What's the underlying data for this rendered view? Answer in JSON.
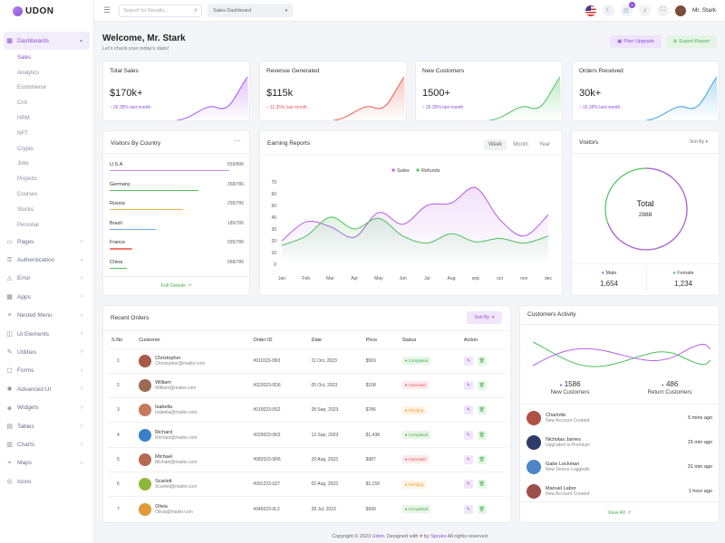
{
  "brand": {
    "name": "UDON"
  },
  "sidebar": {
    "items": [
      {
        "label": "Dashboards",
        "icon": "grid-icon",
        "active": true
      },
      {
        "label": "Pages",
        "icon": "file-icon"
      },
      {
        "label": "Authentication",
        "icon": "key-icon"
      },
      {
        "label": "Error",
        "icon": "warning-icon"
      },
      {
        "label": "Apps",
        "icon": "apps-icon"
      },
      {
        "label": "Nested Menu",
        "icon": "menu-icon"
      },
      {
        "label": "Ui Elements",
        "icon": "layers-icon"
      },
      {
        "label": "Utilities",
        "icon": "tool-icon"
      },
      {
        "label": "Forms",
        "icon": "form-icon"
      },
      {
        "label": "Advanced UI",
        "icon": "advanced-icon"
      },
      {
        "label": "Widgets",
        "icon": "widget-icon"
      },
      {
        "label": "Tables",
        "icon": "table-icon"
      },
      {
        "label": "Charts",
        "icon": "chart-icon"
      },
      {
        "label": "Maps",
        "icon": "map-icon"
      },
      {
        "label": "Icons",
        "icon": "icons-icon"
      }
    ],
    "dashboard_subitems": [
      "Sales",
      "Analytics",
      "Ecommerce",
      "Crm",
      "HRM",
      "NFT",
      "Crypto",
      "Jobs",
      "Projects",
      "Courses",
      "Stocks",
      "Personal"
    ]
  },
  "header": {
    "search_placeholder": "Search for Results...",
    "dashboard_select": "Sales Dashboard",
    "notification_count": "5",
    "user_name": "Mr. Stark"
  },
  "page": {
    "welcome": "Welcome, Mr. Stark",
    "subtitle": "Let's check your today's stats!",
    "plan_upgrade": "Plan Upgrade",
    "export_report": "Export Report"
  },
  "stats": [
    {
      "title": "Total Sales",
      "value": "$170k+",
      "change": "26.35% last month",
      "direction": "up",
      "color": "#a855f7"
    },
    {
      "title": "Revenue Generated",
      "value": "$115k",
      "change": "11.35% last month",
      "direction": "down",
      "color": "#ef5a4a"
    },
    {
      "title": "New Customers",
      "value": "1500+",
      "change": "26.35% last month",
      "direction": "up",
      "color": "#4cc25b"
    },
    {
      "title": "Orders Received",
      "value": "30k+",
      "change": "16.35% last month",
      "direction": "up",
      "color": "#3aa0e0"
    }
  ],
  "visitors_by_country": {
    "title": "Visitors By Country",
    "rows": [
      {
        "name": "U.S.A",
        "value": "559/896",
        "fraction": 0.62,
        "color": "#c58be8"
      },
      {
        "name": "Germany",
        "value": "358/786",
        "fraction": 0.46,
        "color": "#4cc25b"
      },
      {
        "name": "Russia",
        "value": "295/786",
        "fraction": 0.38,
        "color": "#f0b453"
      },
      {
        "name": "Brazil",
        "value": "185/786",
        "fraction": 0.24,
        "color": "#6fa8e8"
      },
      {
        "name": "France",
        "value": "095/786",
        "fraction": 0.12,
        "color": "#ef7a6a"
      },
      {
        "name": "China",
        "value": "068/786",
        "fraction": 0.09,
        "color": "#4cc25b"
      }
    ],
    "full_details": "Full Details"
  },
  "earning_reports": {
    "title": "Earning Reports",
    "tabs": [
      "Week",
      "Month",
      "Year"
    ],
    "active_tab": "Week"
  },
  "chart_data": {
    "type": "line",
    "x": [
      "Jan",
      "Feb",
      "Mar",
      "Apr",
      "May",
      "Jun",
      "Jul",
      "Aug",
      "sep",
      "oct",
      "nov",
      "dec"
    ],
    "series": [
      {
        "name": "Sales",
        "color": "#b55be6",
        "values": [
          20,
          36,
          32,
          23,
          44,
          34,
          50,
          52,
          65,
          38,
          24,
          42
        ]
      },
      {
        "name": "Refunds",
        "color": "#4cc25b",
        "values": [
          16,
          24,
          40,
          30,
          39,
          24,
          18,
          26,
          19,
          22,
          18,
          24
        ]
      }
    ],
    "yticks": [
      0,
      10,
      20,
      30,
      40,
      50,
      60,
      70
    ],
    "ylim": [
      0,
      70
    ],
    "legend": "top-center"
  },
  "visitors": {
    "title": "Visitors",
    "sort_label": "Sort By",
    "total_label": "Total",
    "total_value": "2888",
    "male_label": "Male",
    "male_value": "1,654",
    "female_label": "Female",
    "female_value": "1,234"
  },
  "recent_orders": {
    "title": "Recent Orders",
    "sort_label": "Sort By",
    "columns": [
      "S.No",
      "Customer",
      "Order ID",
      "Date",
      "Price",
      "Status",
      "Action"
    ],
    "rows": [
      {
        "sno": "1",
        "name": "Christopher",
        "email": "Christopher@mailer.com",
        "order_id": "#011023-0N3",
        "date": "11 Oct, 2023",
        "price": "$569",
        "status": "Completed",
        "avatar_color": "#a85a4a"
      },
      {
        "sno": "2",
        "name": "William",
        "email": "William@mailer.com",
        "order_id": "#023023-0D6",
        "date": "05 Oct, 2023",
        "price": "$108",
        "status": "Canceled",
        "avatar_color": "#9a6a55"
      },
      {
        "sno": "3",
        "name": "Isabella",
        "email": "Isabella@mailer.com",
        "order_id": "#019023-0S2",
        "date": "28 Sep, 2023",
        "price": "$786",
        "status": "Pending",
        "avatar_color": "#c87a60"
      },
      {
        "sno": "4",
        "name": "Richard",
        "email": "Richard@mailer.com",
        "order_id": "#029023-0K5",
        "date": "13 Sep, 2023",
        "price": "$1,438",
        "status": "Completed",
        "avatar_color": "#3a7fc8"
      },
      {
        "sno": "5",
        "name": "Michael",
        "email": "Michael@mailer.com",
        "order_id": "#082023-0R6",
        "date": "29 Aug, 2023",
        "price": "$987",
        "status": "Canceled",
        "avatar_color": "#b46a52"
      },
      {
        "sno": "6",
        "name": "Scarlett",
        "email": "Scarlett@mailer.com",
        "order_id": "#091223-0Z7",
        "date": "02 Aug, 2023",
        "price": "$1,159",
        "status": "Pending",
        "avatar_color": "#8fb83a"
      },
      {
        "sno": "7",
        "name": "Olivia",
        "email": "Olivia@mailer.com",
        "order_id": "#045023-0L2",
        "date": "28 Jul, 2023",
        "price": "$999",
        "status": "Completed",
        "avatar_color": "#e09a3a"
      }
    ]
  },
  "customers_activity": {
    "title": "Customers Activity",
    "new_value": "1586",
    "new_label": "New Customers",
    "return_value": "486",
    "return_label": "Return Customers",
    "items": [
      {
        "name": "Charlotte",
        "desc": "New Account Created",
        "time": "5 mins ago",
        "avatar_color": "#b05048"
      },
      {
        "name": "Nicholas James",
        "desc": "Upgraded to Premium",
        "time": "15 min ago",
        "avatar_color": "#2d3a6a"
      },
      {
        "name": "Gabe Lockman",
        "desc": "New Device Loggedin",
        "time": "31 min ago",
        "avatar_color": "#4a86c8"
      },
      {
        "name": "Manuel Labor",
        "desc": "New Account Created",
        "time": "1 hour ago",
        "avatar_color": "#9a5048"
      }
    ],
    "view_all": "View All"
  },
  "footer": {
    "prefix": "Copyright © 2023",
    "brand": "Udon",
    "middle": ". Designed with",
    "by": "by",
    "author": "Spruko",
    "suffix": "All rights reserved"
  }
}
